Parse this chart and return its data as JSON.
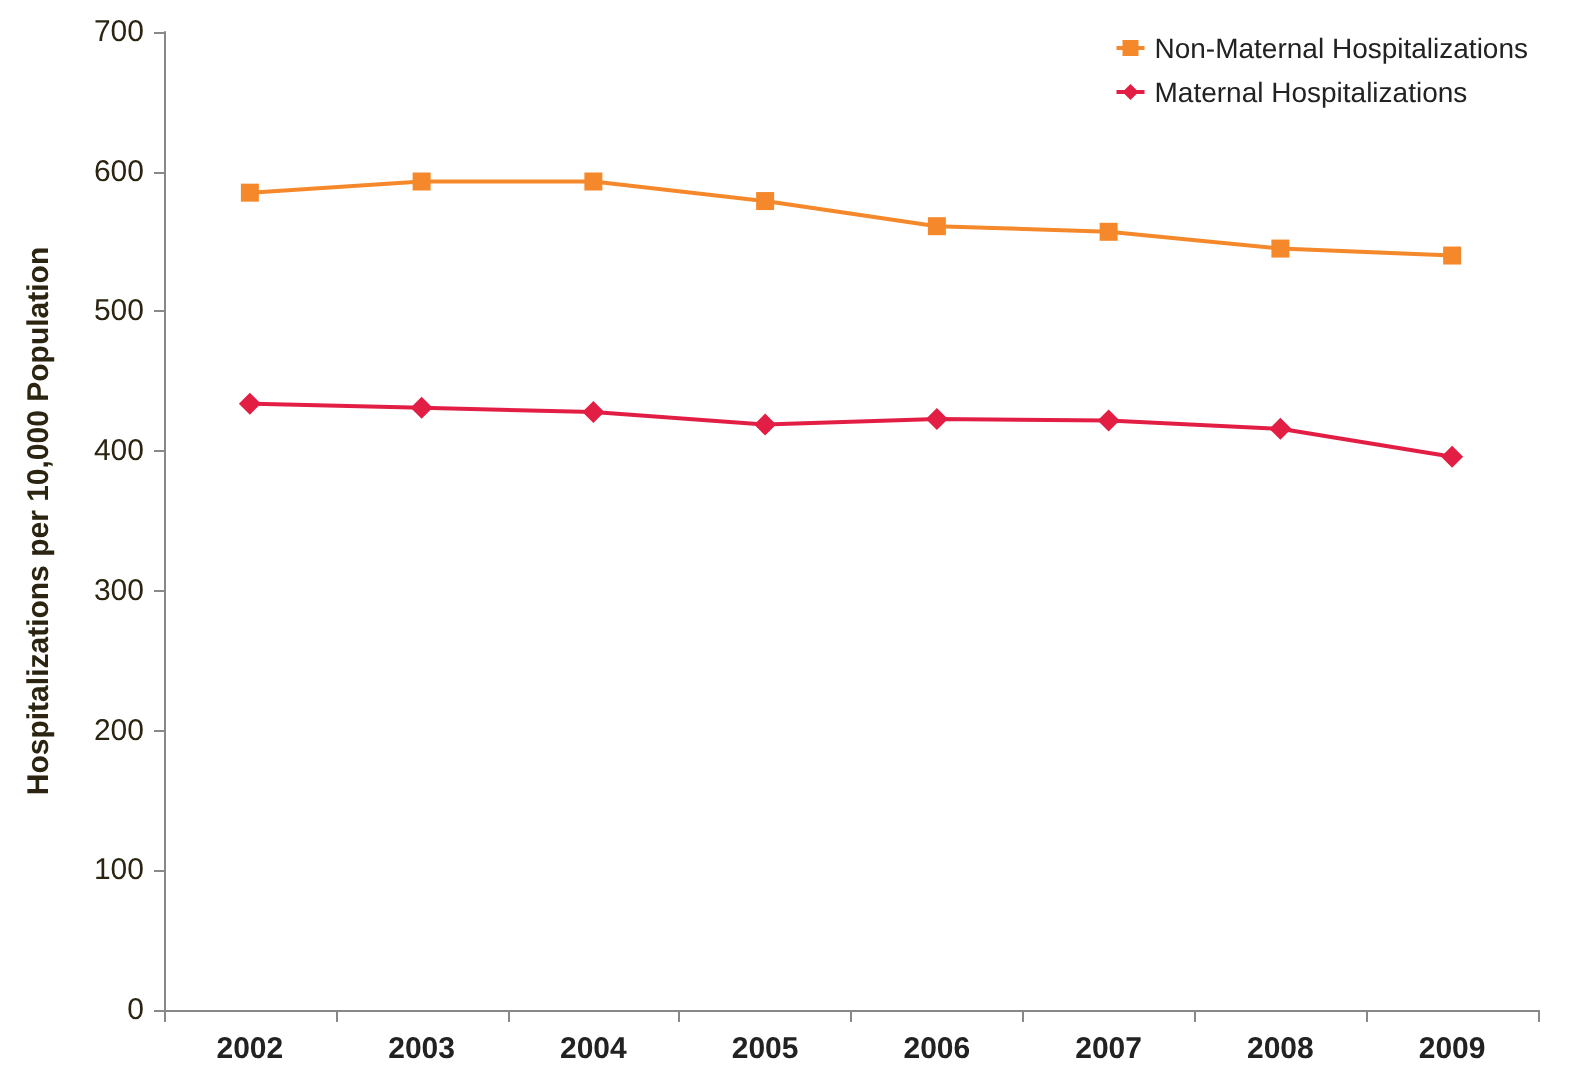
{
  "chart_data": {
    "type": "line",
    "ylabel": "Hospitalizations per 10,000 Population",
    "categories": [
      "2002",
      "2003",
      "2004",
      "2005",
      "2006",
      "2007",
      "2008",
      "2009"
    ],
    "series": [
      {
        "name": "Non-Maternal Hospitalizations",
        "color": "#f5882a",
        "marker": "square",
        "values": [
          585,
          593,
          593,
          579,
          561,
          557,
          545,
          540
        ]
      },
      {
        "name": "Maternal Hospitalizations",
        "color": "#e31e45",
        "marker": "diamond",
        "values": [
          434,
          431,
          428,
          419,
          423,
          422,
          416,
          396
        ]
      }
    ],
    "ylim": [
      0,
      700
    ],
    "yticks": [
      0,
      100,
      200,
      300,
      400,
      500,
      600,
      700
    ],
    "grid": false,
    "legend": "top right"
  }
}
